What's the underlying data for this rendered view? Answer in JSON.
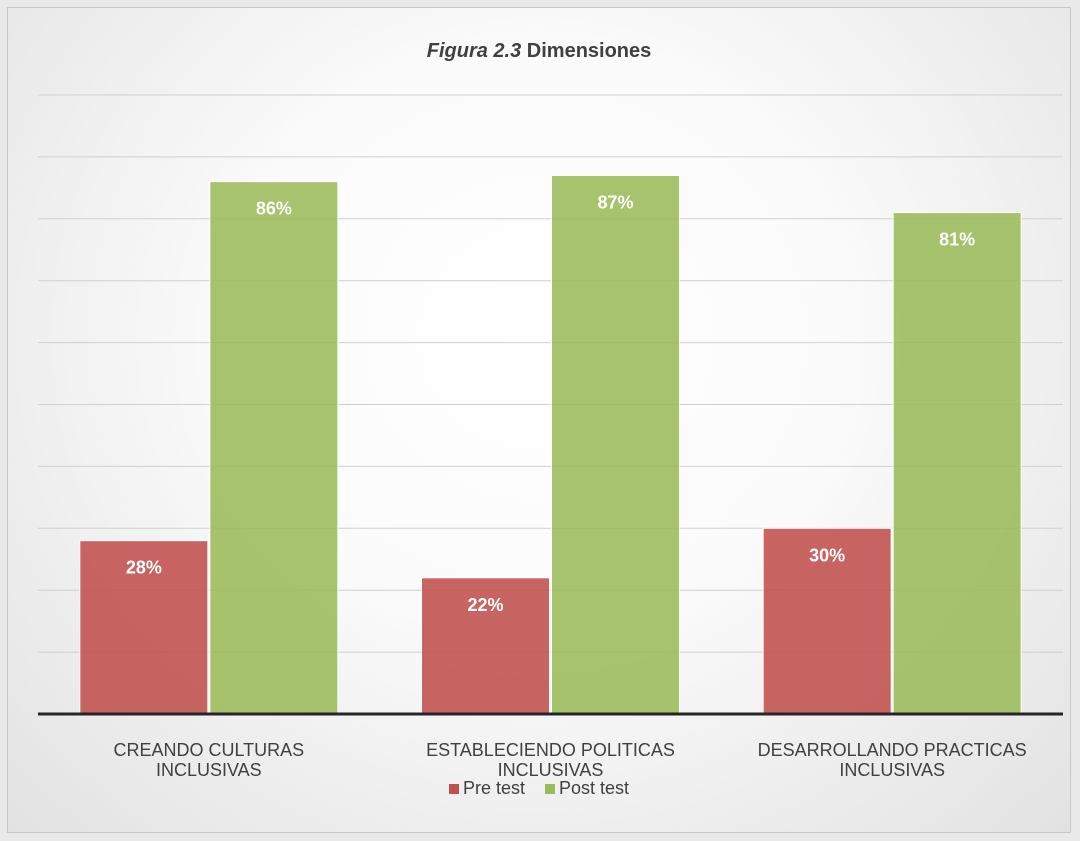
{
  "chart_data": {
    "type": "bar",
    "title_italic": "Figura 2.3",
    "title_bold": "Dimensiones",
    "categories": [
      [
        "CREANDO CULTURAS",
        "INCLUSIVAS"
      ],
      [
        "ESTABLECIENDO POLITICAS",
        "INCLUSIVAS"
      ],
      [
        "DESARROLLANDO PRACTICAS",
        "INCLUSIVAS"
      ]
    ],
    "series": [
      {
        "name": "Pre test",
        "values": [
          28,
          22,
          30
        ],
        "labels": [
          "28%",
          "22%",
          "30%"
        ],
        "color": "#c0504d"
      },
      {
        "name": "Post test",
        "values": [
          86,
          87,
          81
        ],
        "labels": [
          "86%",
          "87%",
          "81%"
        ],
        "color": "#9bbb59"
      }
    ],
    "ylim": [
      0,
      100
    ],
    "grid": true,
    "legend_position": "bottom"
  }
}
